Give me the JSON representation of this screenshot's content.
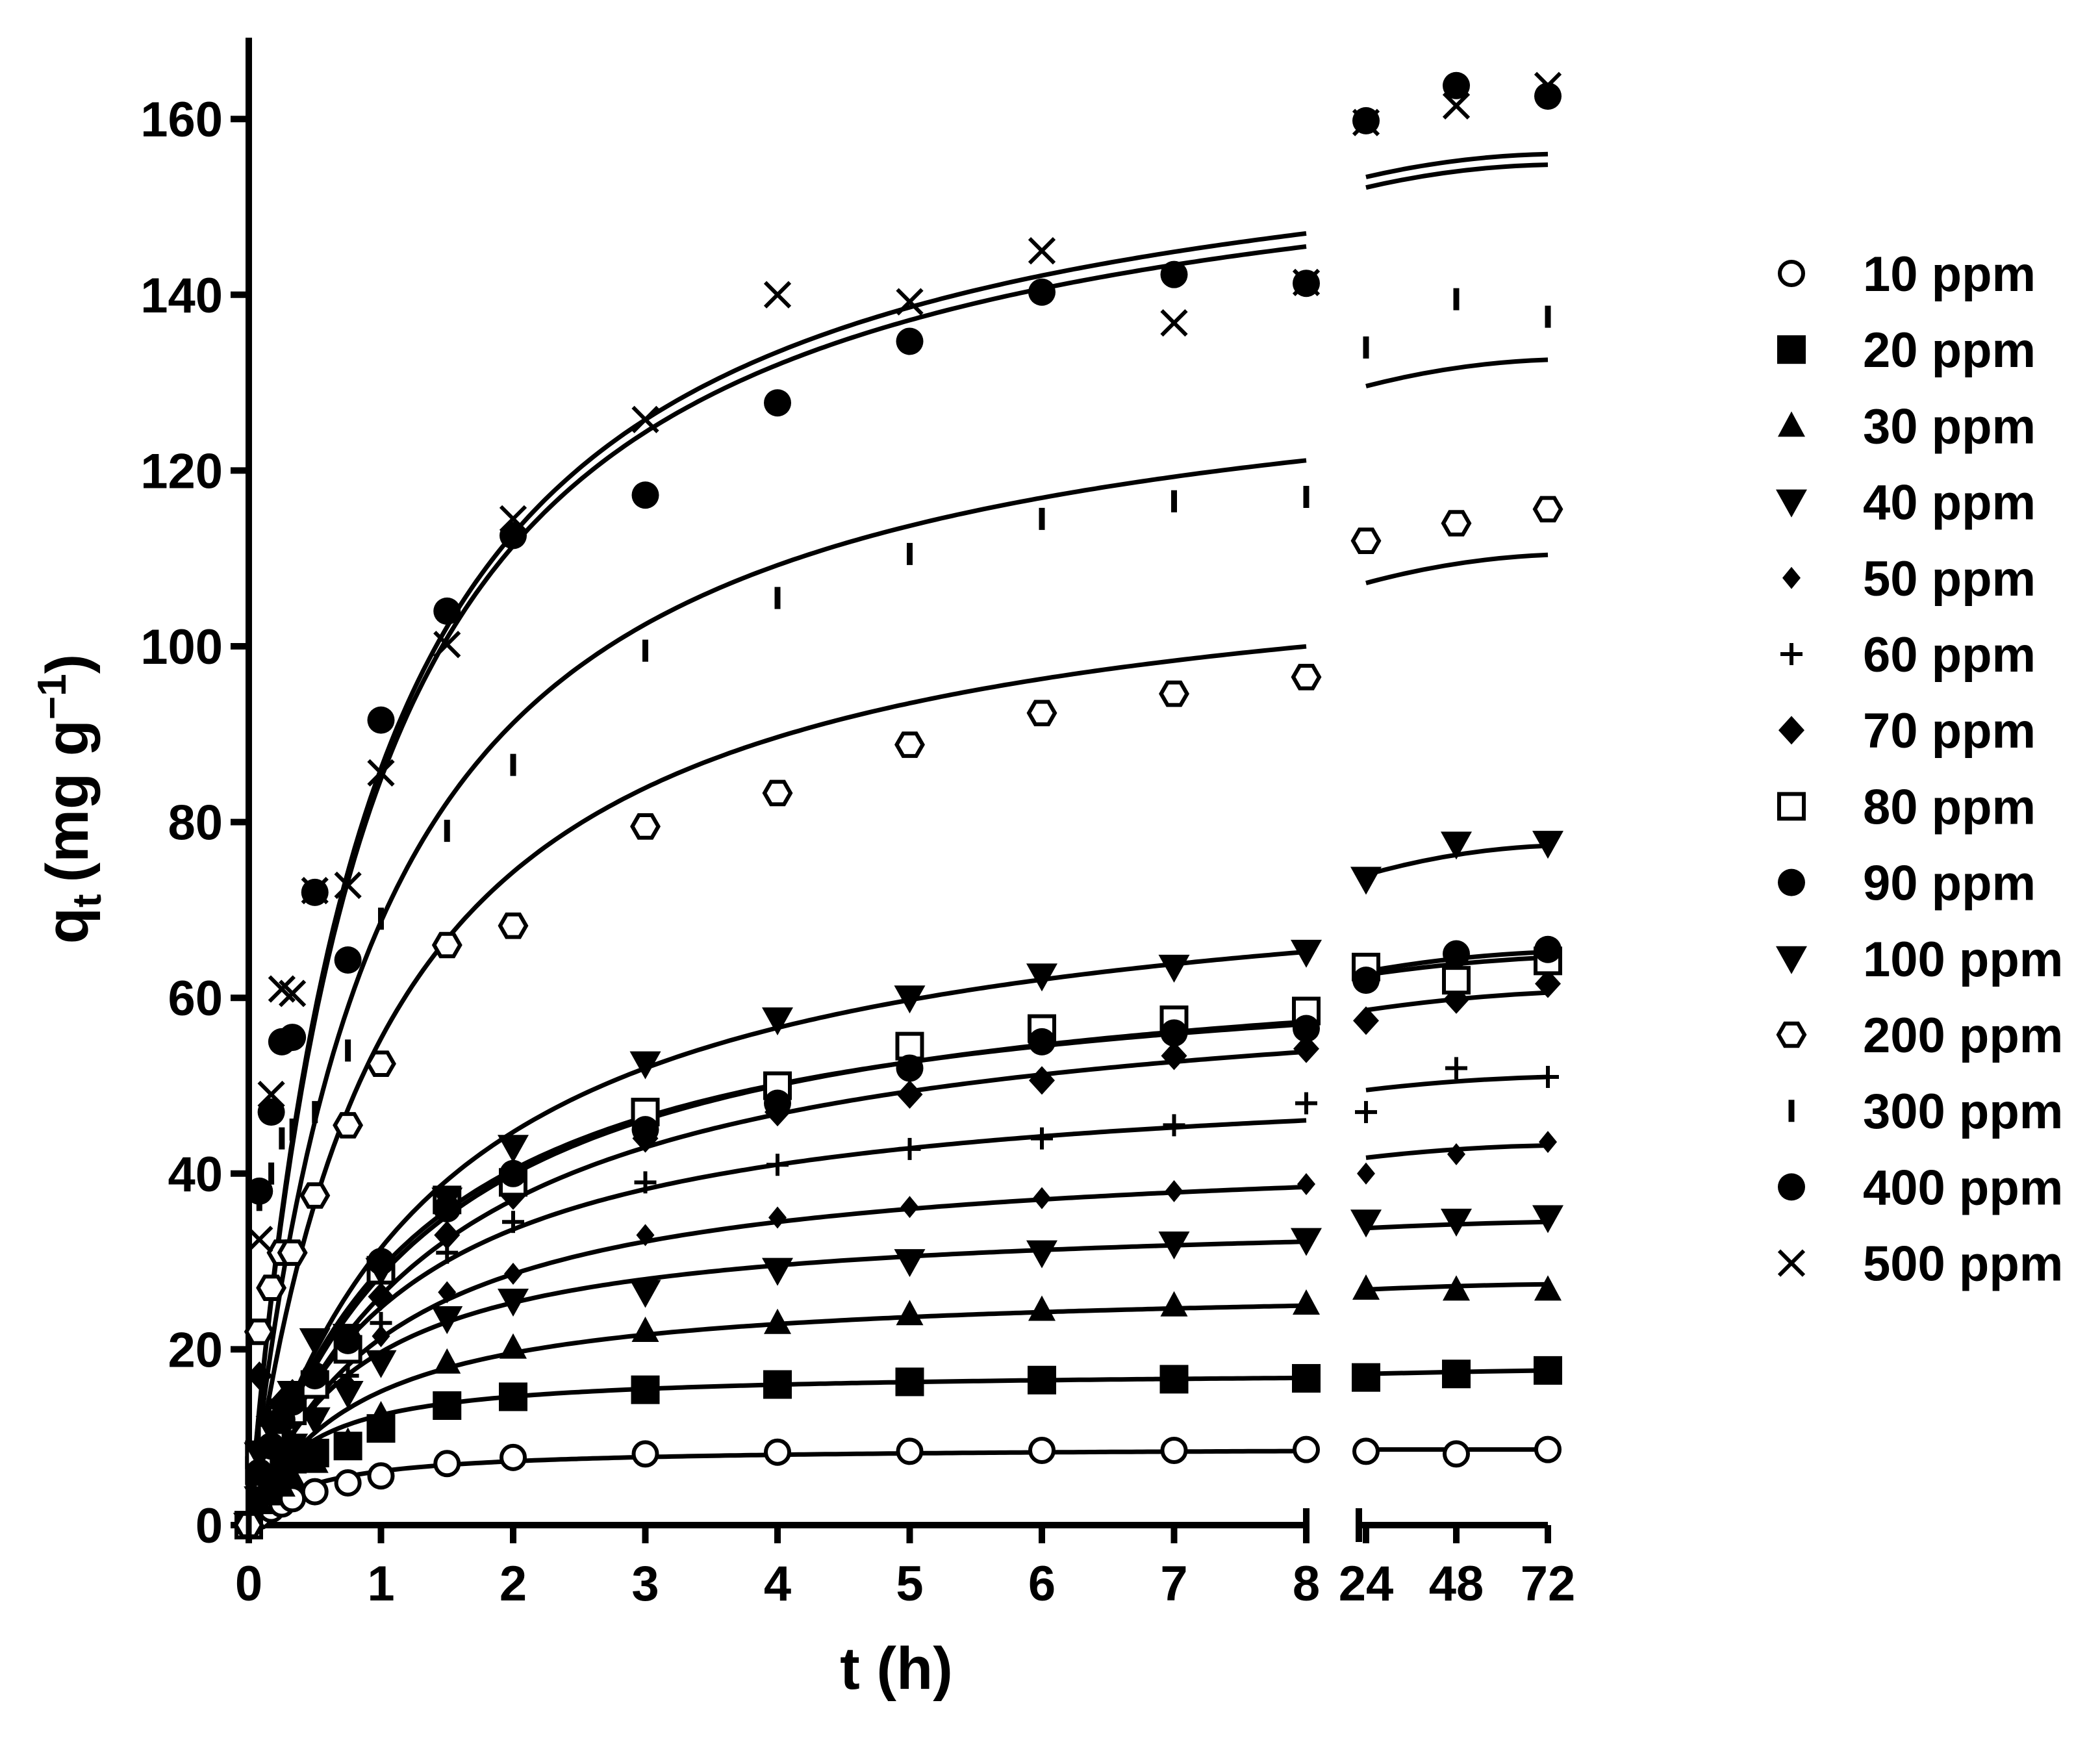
{
  "chart_data": {
    "type": "scatter",
    "title": "",
    "xlabel": "t (h)",
    "ylabel_main": "q",
    "ylabel_sub": "t",
    "ylabel_units": "(mg g",
    "ylabel_sup": "−1",
    "ylabel_close": ")",
    "ylim": [
      0,
      170
    ],
    "yticks": [
      0,
      20,
      40,
      60,
      80,
      100,
      120,
      140,
      160
    ],
    "xlim_main": [
      0,
      8
    ],
    "xticks_main": [
      0,
      1,
      2,
      3,
      4,
      5,
      6,
      7,
      8
    ],
    "xticks_tail": [
      24,
      48,
      72
    ],
    "legend_position": "right",
    "series": [
      {
        "name": "10 ppm",
        "marker": "circle-open",
        "x": [
          0,
          0.08,
          0.17,
          0.25,
          0.33,
          0.5,
          0.75,
          1,
          1.5,
          2,
          3,
          4,
          5,
          6,
          7,
          8,
          24,
          48,
          72
        ],
        "y": [
          0,
          1,
          1.8,
          2.4,
          3,
          3.8,
          4.8,
          5.6,
          7,
          7.7,
          8.1,
          8.3,
          8.4,
          8.5,
          8.5,
          8.6,
          8.4,
          8.1,
          8.6
        ],
        "fit_main": {
          "qe": 8.9,
          "k": 0.25,
          "tmax": 8
        },
        "fit_tail": {
          "y": [
            8.6,
            8.6,
            8.6
          ]
        }
      },
      {
        "name": "20 ppm",
        "marker": "square-filled",
        "x": [
          0,
          0.08,
          0.17,
          0.25,
          0.33,
          0.5,
          0.75,
          1,
          1.5,
          2,
          3,
          4,
          5,
          6,
          7,
          8,
          24,
          48,
          72
        ],
        "y": [
          0,
          6.2,
          6.5,
          7,
          7.5,
          8.2,
          9,
          11,
          13.6,
          14.6,
          15.4,
          16,
          16.3,
          16.5,
          16.6,
          16.7,
          16.8,
          17.2,
          17.6
        ],
        "fit_main": {
          "qe": 17.6,
          "k": 0.14,
          "tmax": 8
        },
        "fit_tail": {
          "y": [
            17.2,
            17.4,
            17.6
          ]
        }
      },
      {
        "name": "30 ppm",
        "marker": "triangle-up-filled",
        "x": [
          0,
          0.08,
          0.17,
          0.25,
          0.33,
          0.5,
          0.75,
          1,
          1.5,
          2,
          3,
          4,
          5,
          6,
          7,
          8,
          24,
          48,
          72
        ],
        "y": [
          0,
          2.5,
          3.5,
          4.5,
          5.5,
          7.2,
          9.5,
          12.5,
          18.5,
          20.2,
          22.1,
          23,
          24,
          24.5,
          25,
          25.2,
          26.9,
          26.8,
          26.8
        ],
        "fit_main": {
          "qe": 27.5,
          "k": 0.045,
          "tmax": 8
        },
        "fit_tail": {
          "y": [
            26.8,
            27.2,
            27.4
          ]
        }
      },
      {
        "name": "40 ppm",
        "marker": "triangle-down-filled",
        "x": [
          0,
          0.08,
          0.17,
          0.25,
          0.33,
          0.5,
          0.75,
          1,
          1.5,
          2,
          3,
          4,
          5,
          6,
          7,
          8,
          24,
          48,
          72
        ],
        "y": [
          0,
          3,
          5,
          7,
          9,
          12,
          15,
          18.5,
          23.5,
          25.5,
          26.5,
          29,
          30,
          31,
          32,
          32.4,
          34.5,
          34.6,
          35
        ],
        "fit_main": {
          "qe": 35.5,
          "k": 0.035,
          "tmax": 8
        },
        "fit_tail": {
          "y": [
            33.8,
            34.2,
            34.5
          ]
        }
      },
      {
        "name": "50 ppm",
        "marker": "diamond-small",
        "x": [
          0,
          0.08,
          0.17,
          0.25,
          0.33,
          0.5,
          0.75,
          1,
          1.5,
          2,
          3,
          4,
          5,
          6,
          7,
          8,
          24,
          48,
          72
        ],
        "y": [
          0,
          3,
          5,
          7,
          9,
          12,
          16,
          21.5,
          26.5,
          28.6,
          33,
          35,
          36.2,
          37.2,
          38,
          38.8,
          40,
          42.2,
          43.6
        ],
        "fit_main": {
          "qe": 43.5,
          "k": 0.022,
          "tmax": 8
        },
        "fit_tail": {
          "y": [
            41.8,
            42.8,
            43.2
          ]
        }
      },
      {
        "name": "60 ppm",
        "marker": "plus",
        "x": [
          0,
          0.08,
          0.17,
          0.25,
          0.33,
          0.5,
          0.75,
          1,
          1.5,
          2,
          3,
          4,
          5,
          6,
          7,
          8,
          24,
          48,
          72
        ],
        "y": [
          0,
          3,
          6,
          8,
          10,
          13,
          17,
          23,
          31,
          34.5,
          39,
          41,
          42.8,
          44,
          45.5,
          48,
          47,
          52,
          51
        ],
        "fit_main": {
          "qe": 52.5,
          "k": 0.017,
          "tmax": 8
        },
        "fit_tail": {
          "y": [
            49.5,
            50.5,
            51
          ]
        }
      },
      {
        "name": "70 ppm",
        "marker": "diamond-filled",
        "x": [
          0,
          0.08,
          0.17,
          0.25,
          0.33,
          0.5,
          0.75,
          1,
          1.5,
          2,
          3,
          4,
          5,
          6,
          7,
          8,
          24,
          48,
          72
        ],
        "y": [
          0,
          17,
          12,
          14,
          15,
          16,
          20,
          26,
          33,
          37.5,
          44,
          47,
          49,
          50.6,
          53.4,
          54.2,
          57.4,
          59.8,
          61.6
        ],
        "fit_main": {
          "qe": 63.5,
          "k": 0.011,
          "tmax": 8
        },
        "fit_tail": {
          "y": [
            58.6,
            59.8,
            60.6
          ]
        }
      },
      {
        "name": "80 ppm",
        "marker": "square-open",
        "x": [
          0,
          0.08,
          0.17,
          0.25,
          0.33,
          0.5,
          0.75,
          1,
          1.5,
          2,
          3,
          4,
          5,
          6,
          7,
          8,
          24,
          48,
          72
        ],
        "y": [
          0,
          8,
          10,
          12,
          13,
          16,
          20,
          29,
          37,
          39,
          47,
          50,
          54.5,
          56.5,
          57.5,
          58.5,
          63.5,
          62,
          64.2
        ],
        "fit_main": {
          "qe": 67,
          "k": 0.011,
          "tmax": 8
        },
        "fit_tail": {
          "y": [
            62.6,
            63.8,
            64.6
          ]
        }
      },
      {
        "name": "90 ppm",
        "marker": "circle-filled",
        "x": [
          0,
          0.08,
          0.17,
          0.25,
          0.33,
          0.5,
          0.75,
          1,
          1.5,
          2,
          3,
          4,
          5,
          6,
          7,
          8,
          24,
          48,
          72
        ],
        "y": [
          0,
          6,
          9,
          12,
          14,
          17,
          21,
          30,
          36,
          40,
          45,
          48,
          52,
          55,
          56,
          56.5,
          62,
          65,
          65.5
        ],
        "fit_main": {
          "qe": 66,
          "k": 0.012,
          "tmax": 8
        },
        "fit_tail": {
          "y": [
            63,
            64.5,
            65.2
          ]
        }
      },
      {
        "name": "100 ppm",
        "marker": "triangle-down-filled",
        "x": [
          0,
          0.08,
          0.17,
          0.25,
          0.33,
          0.5,
          0.75,
          1,
          1.5,
          2,
          3,
          4,
          5,
          6,
          7,
          8,
          24,
          48,
          72
        ],
        "y": [
          0,
          8,
          11,
          13,
          15,
          21,
          21.5,
          29,
          37,
          43,
          52.5,
          57.5,
          60,
          62.5,
          63.5,
          65.2,
          73.5,
          77.5,
          77.6
        ],
        "fit_main": {
          "qe": 77,
          "k": 0.009,
          "tmax": 8
        },
        "fit_tail": {
          "y": [
            74,
            76.4,
            77.3
          ]
        }
      },
      {
        "name": "200 ppm",
        "marker": "hexagon-open",
        "x": [
          0,
          0.08,
          0.17,
          0.25,
          0.33,
          0.5,
          0.75,
          1,
          1.5,
          2,
          3,
          4,
          5,
          6,
          7,
          8,
          24,
          48,
          72
        ],
        "y": [
          0,
          22,
          27,
          31,
          31,
          37.5,
          45.5,
          52.5,
          66,
          68.2,
          79.5,
          83.3,
          88.8,
          92.4,
          94.6,
          96.5,
          112,
          114,
          115.6
        ],
        "fit_main": {
          "qe": 113,
          "k": 0.0085,
          "tmax": 8
        },
        "fit_tail": {
          "y": [
            107.2,
            109.5,
            110.4
          ]
        }
      },
      {
        "name": "300 ppm",
        "marker": "vbar",
        "x": [
          0,
          0.08,
          0.17,
          0.25,
          0.33,
          0.5,
          0.75,
          1,
          1.5,
          2,
          3,
          4,
          5,
          6,
          7,
          8,
          24,
          48,
          72
        ],
        "y": [
          0,
          37,
          40,
          44,
          45,
          47,
          54,
          69,
          79,
          86.5,
          99.5,
          105.5,
          110.5,
          114.5,
          116.5,
          117,
          134,
          139.5,
          137.5
        ],
        "fit_main": {
          "qe": 136,
          "k": 0.0075,
          "tmax": 8
        },
        "fit_tail": {
          "y": [
            129.6,
            131.8,
            132.6
          ]
        }
      },
      {
        "name": "400 ppm",
        "marker": "circle-filled",
        "x": [
          0.08,
          0.17,
          0.25,
          0.33,
          0.5,
          0.75,
          1,
          1.5,
          2,
          3,
          4,
          5,
          6,
          7,
          8,
          24,
          48,
          72
        ],
        "y": [
          38,
          47,
          55,
          55.5,
          72,
          64.3,
          91.6,
          104,
          112.6,
          117.2,
          127.7,
          134.7,
          140.3,
          142.3,
          141.3,
          159.8,
          163.8,
          162.6
        ],
        "fit_main": {
          "qe": 162,
          "k": 0.0068,
          "tmax": 8
        },
        "fit_tail": {
          "y": [
            152.2,
            154.2,
            154.8
          ]
        }
      },
      {
        "name": "500 ppm",
        "marker": "cross",
        "x": [
          0.08,
          0.17,
          0.25,
          0.33,
          0.5,
          0.75,
          1,
          1.5,
          2,
          3,
          4,
          5,
          6,
          7,
          8,
          24,
          48,
          72
        ],
        "y": [
          32.5,
          49,
          61,
          60.5,
          72.2,
          72.8,
          85.6,
          100.2,
          114.5,
          125.8,
          140,
          139.2,
          145,
          136.8,
          141.4,
          159.6,
          161.5,
          163.8
        ],
        "fit_main": {
          "qe": 163.5,
          "k": 0.0068,
          "tmax": 8
        },
        "fit_tail": {
          "y": [
            153.4,
            155.4,
            156
          ]
        }
      }
    ]
  }
}
